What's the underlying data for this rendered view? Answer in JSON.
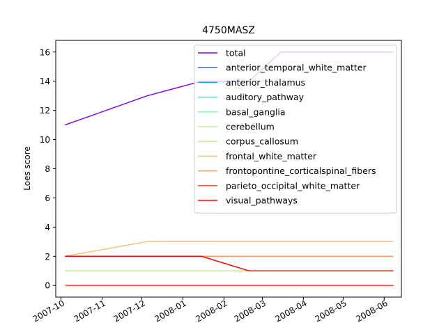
{
  "chart_data": {
    "type": "line",
    "title": "4750MASZ",
    "xlabel": "",
    "ylabel": "Loes score",
    "x_tick_labels": [
      "2007-10",
      "2007-11",
      "2007-12",
      "2008-01",
      "2008-02",
      "2008-03",
      "2008-04",
      "2008-05",
      "2008-06"
    ],
    "x_ticks": [
      "2007-10-01",
      "2007-11-01",
      "2007-12-01",
      "2008-01-01",
      "2008-02-01",
      "2008-03-01",
      "2008-04-01",
      "2008-05-01",
      "2008-06-01"
    ],
    "xlim": [
      "2007-09-27",
      "2008-06-14"
    ],
    "ylim": [
      -0.8,
      16.8
    ],
    "y_ticks": [
      0,
      2,
      4,
      6,
      8,
      10,
      12,
      14,
      16
    ],
    "grid": false,
    "legend_position": "upper right",
    "series": [
      {
        "name": "total",
        "color": "#8000ff",
        "x": [
          "2007-10-04",
          "2007-12-05",
          "2008-01-15",
          "2008-02-20",
          "2008-03-15",
          "2008-06-08"
        ],
        "y": [
          11,
          13,
          14,
          14,
          16,
          16
        ]
      },
      {
        "name": "anterior_temporal_white_matter",
        "color": "#4062fa",
        "x": [
          "2007-10-04",
          "2007-12-05",
          "2008-01-15",
          "2008-02-20",
          "2008-03-15",
          "2008-06-08"
        ],
        "y": [
          0,
          0,
          0,
          0,
          0,
          0
        ]
      },
      {
        "name": "anterior_thalamus",
        "color": "#00b5eb",
        "x": [
          "2007-10-04",
          "2007-12-05",
          "2008-01-15",
          "2008-02-20",
          "2008-03-15",
          "2008-06-08"
        ],
        "y": [
          0,
          0,
          0,
          0,
          0,
          0
        ]
      },
      {
        "name": "auditory_pathway",
        "color": "#40ecd4",
        "x": [
          "2007-10-04",
          "2007-12-05",
          "2008-01-15",
          "2008-02-20",
          "2008-03-15",
          "2008-06-08"
        ],
        "y": [
          0,
          0,
          0,
          0,
          0,
          0
        ]
      },
      {
        "name": "basal_ganglia",
        "color": "#80ffb4",
        "x": [
          "2007-10-04",
          "2007-12-05",
          "2008-01-15",
          "2008-02-20",
          "2008-03-15",
          "2008-06-08"
        ],
        "y": [
          0,
          0,
          0,
          0,
          0,
          0
        ]
      },
      {
        "name": "cerebellum",
        "color": "#bfecaa",
        "x": [
          "2007-10-04",
          "2007-12-05",
          "2008-01-15",
          "2008-02-20",
          "2008-03-15",
          "2008-06-08"
        ],
        "y": [
          0,
          0,
          0,
          0,
          0,
          0
        ]
      },
      {
        "name": "corpus_callosum",
        "color": "#c0eb8c",
        "x": [
          "2007-10-04",
          "2007-12-05",
          "2008-01-15",
          "2008-02-20",
          "2008-03-15",
          "2008-06-08"
        ],
        "y": [
          1,
          1,
          1,
          1,
          1,
          1
        ]
      },
      {
        "name": "frontal_white_matter",
        "color": "#e3c97a",
        "x": [
          "2007-10-04",
          "2007-12-05",
          "2008-01-15",
          "2008-02-20",
          "2008-03-15",
          "2008-06-08"
        ],
        "y": [
          2,
          3,
          3,
          3,
          3,
          3
        ]
      },
      {
        "name": "frontopontine_corticalspinal_fibers",
        "color": "#ff9a56",
        "x": [
          "2007-10-04",
          "2007-12-05",
          "2008-01-15",
          "2008-02-20",
          "2008-03-15",
          "2008-06-08"
        ],
        "y": [
          2,
          2,
          2,
          2,
          2,
          2
        ]
      },
      {
        "name": "parieto_occipital_white_matter",
        "color": "#f5512f",
        "x": [
          "2007-10-04",
          "2007-12-05",
          "2008-01-15",
          "2008-02-20",
          "2008-03-15",
          "2008-06-08"
        ],
        "y": [
          0,
          0,
          0,
          0,
          0,
          0
        ]
      },
      {
        "name": "visual_pathways",
        "color": "#ff0000",
        "x": [
          "2007-10-04",
          "2007-12-05",
          "2008-01-15",
          "2008-02-20",
          "2008-03-15",
          "2008-06-08"
        ],
        "y": [
          2,
          2,
          2,
          1,
          1,
          1
        ]
      }
    ]
  }
}
